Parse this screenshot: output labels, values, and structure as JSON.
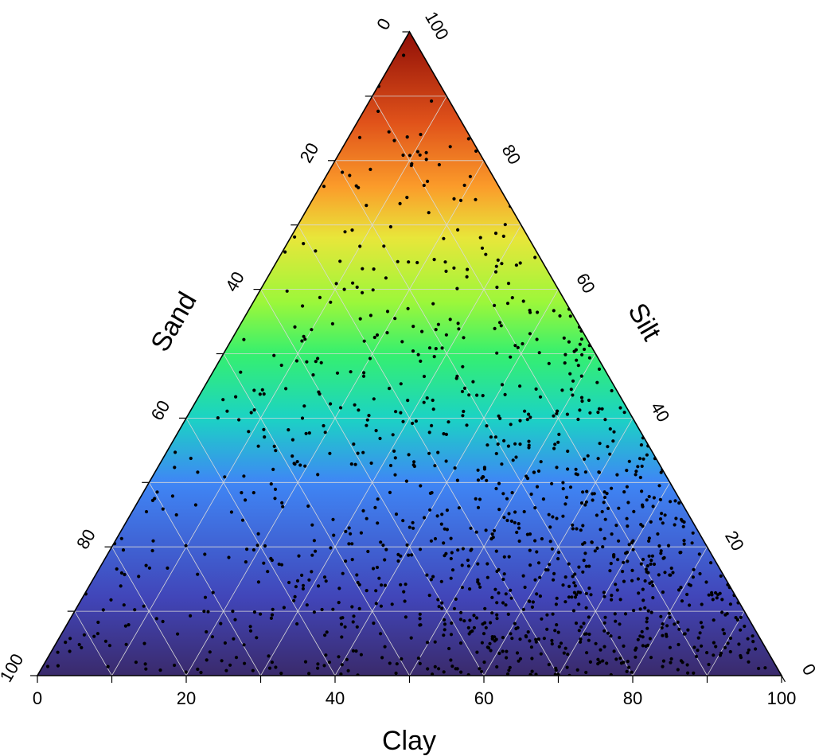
{
  "chart_data": {
    "type": "scatter",
    "subtype": "ternary",
    "title": "",
    "axes": {
      "bottom": {
        "label": "Clay",
        "ticks": [
          "0",
          "20",
          "40",
          "60",
          "80",
          "100"
        ]
      },
      "left": {
        "label": "Sand",
        "ticks": [
          "100",
          "80",
          "60",
          "40",
          "20",
          "0"
        ]
      },
      "right": {
        "label": "Silt",
        "ticks": [
          "0",
          "20",
          "40",
          "60",
          "80",
          "100"
        ]
      }
    },
    "grid": true,
    "grid_step": 10,
    "tick_step": 20,
    "background_fill": "color gradient by Silt fraction",
    "colormap": [
      "#3a2a6b",
      "#4145b8",
      "#3f86f5",
      "#1bd3c4",
      "#36f06e",
      "#9cf73a",
      "#e8e63a",
      "#fb9b2a",
      "#e0521a",
      "#8f0e07"
    ],
    "point_color": "#000000",
    "point_count": 1200,
    "distribution_note": "points densest near Clay=100 (bottom-right corner), sparse toward Silt=100 (top)"
  }
}
